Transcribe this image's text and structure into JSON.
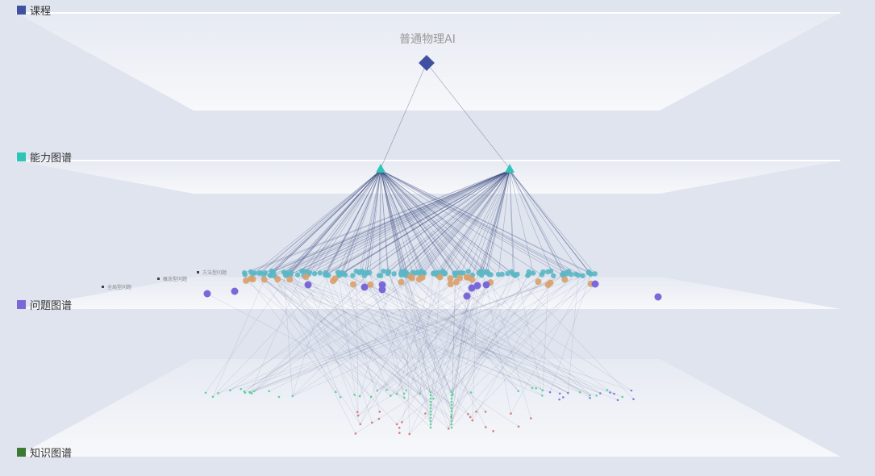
{
  "legend": [
    {
      "label": "课程",
      "color": "#3f51a0"
    },
    {
      "label": "能力图谱",
      "color": "#2ec4b6"
    },
    {
      "label": "问题图谱",
      "color": "#7b68d8"
    },
    {
      "label": "知识图谱",
      "color": "#3d7a33"
    }
  ],
  "course": {
    "title": "普通物理AI",
    "color": "#3f51a0"
  },
  "question_types": [
    "全局型问题",
    "概念型问题",
    "方法型问题"
  ],
  "node_colors": {
    "ability": "#2ec4b6",
    "question_teal": "#5bb7c4",
    "question_orange": "#d9a06b",
    "question_purple": "#7b68d8",
    "knowledge_green": "#5fd39a",
    "knowledge_red": "#d77a7a",
    "knowledge_purple": "#8a7be0",
    "edge": "#34457a"
  }
}
